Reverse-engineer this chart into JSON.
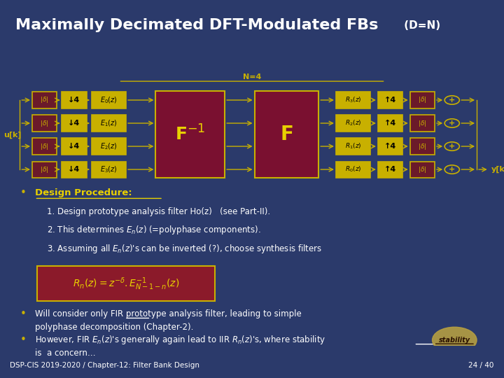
{
  "title": "Maximally Decimated DFT-Modulated FBs",
  "title_suffix": " (D=N)",
  "bg_title": "#2b3a6b",
  "bg_body": "#6b1a2a",
  "bg_slide": "#2b3a6b",
  "footer_left": "DSP-CIS 2019-2020 / Chapter-12: Filter Bank Design",
  "footer_right": "24 / 40",
  "box_color": "#c8b400",
  "box_face": "#c8b400",
  "F_box_face": "#7a1a2a",
  "text_color": "#ffffff",
  "yellow": "#e8d000",
  "gold": "#c8b000"
}
